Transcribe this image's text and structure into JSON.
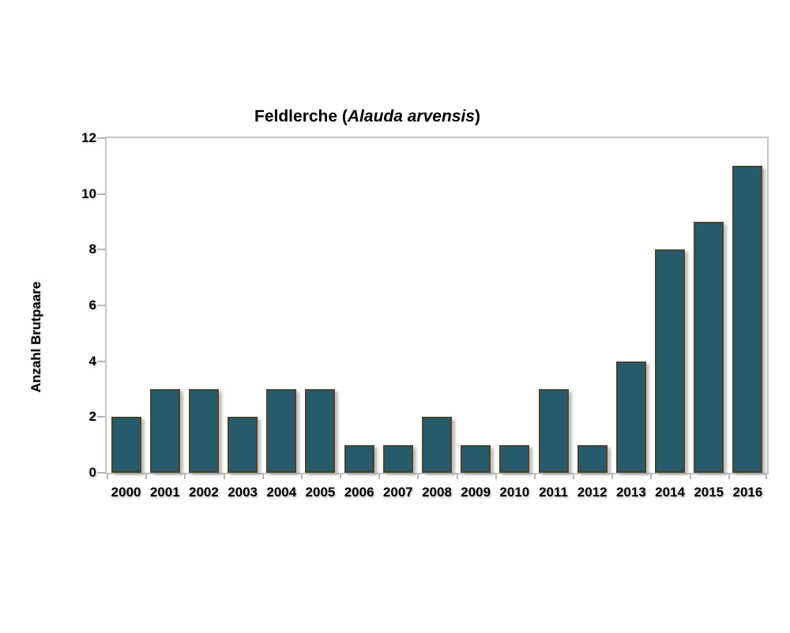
{
  "chart_data": {
    "type": "bar",
    "title": "Feldlerche (Alauda arvensis)",
    "title_parts": {
      "prefix": "Feldlerche (",
      "italic": "Alauda arvensis",
      "suffix": ")"
    },
    "categories": [
      "2000",
      "2001",
      "2002",
      "2003",
      "2004",
      "2005",
      "2006",
      "2007",
      "2008",
      "2009",
      "2010",
      "2011",
      "2012",
      "2013",
      "2014",
      "2015",
      "2016"
    ],
    "values": [
      2,
      3,
      3,
      2,
      3,
      3,
      1,
      1,
      2,
      1,
      1,
      3,
      1,
      4,
      8,
      9,
      11
    ],
    "xlabel": "",
    "ylabel": "Anzahl Brutpaare",
    "ylim": [
      0,
      12
    ],
    "yticks": [
      0,
      2,
      4,
      6,
      8,
      10,
      12
    ],
    "grid": false,
    "legend": null,
    "colors": {
      "bar_fill": "#275a6b",
      "bar_border": "#4a442b",
      "axis": "#c4c4c4",
      "tick": "#b5b5b5",
      "text": "#000000",
      "background": "#ffffff"
    }
  }
}
